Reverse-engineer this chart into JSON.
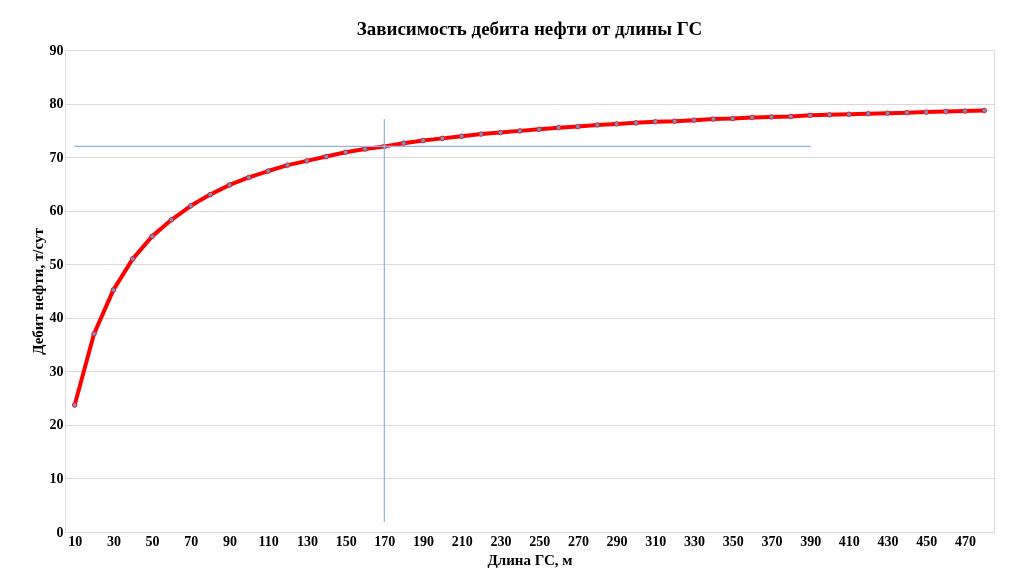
{
  "chart_data": {
    "type": "line",
    "title": "Зависимость дебита нефти от длины ГС",
    "xlabel": "Длина ГС, м",
    "ylabel": "Дебит нефти, т/сут",
    "categories": [
      "10",
      null,
      "30",
      null,
      "50",
      null,
      "70",
      null,
      "90",
      null,
      "110",
      null,
      "130",
      null,
      "150",
      null,
      "170",
      null,
      "190",
      null,
      "210",
      null,
      "230",
      null,
      "250",
      null,
      "270",
      null,
      "290",
      null,
      "310",
      null,
      "330",
      null,
      "350",
      null,
      "370",
      null,
      "390",
      null,
      "410",
      null,
      "430",
      null,
      "450",
      null,
      "470",
      null
    ],
    "series": [
      {
        "color": "#ff0000",
        "marker": "circle",
        "values": [
          23.7,
          37,
          45.2,
          51,
          55.2,
          58.3,
          60.9,
          63,
          64.8,
          66.2,
          67.4,
          68.5,
          69.3,
          70.1,
          70.9,
          71.5,
          72,
          72.6,
          73.1,
          73.5,
          73.9,
          74.3,
          74.6,
          74.9,
          75.2,
          75.5,
          75.7,
          76,
          76.2,
          76.4,
          76.6,
          76.7,
          76.9,
          77.1,
          77.2,
          77.4,
          77.5,
          77.6,
          77.8,
          77.9,
          78,
          78.1,
          78.2,
          78.3,
          78.4,
          78.5,
          78.6,
          78.7
        ]
      },
      {
        "type": "line",
        "color": "#8eb4e3",
        "marker": "none",
        "x": [
          "10",
          "390"
        ],
        "values": [
          72,
          72
        ]
      },
      {
        "type": "line",
        "color": "#8eb4e3",
        "marker": "none",
        "x": [
          "170",
          "170"
        ],
        "values": [
          2,
          77
        ]
      }
    ],
    "ylim": [
      0,
      90
    ],
    "yticks": [
      0,
      10,
      20,
      30,
      40,
      50,
      60,
      70,
      80,
      90
    ],
    "grid": "y"
  }
}
